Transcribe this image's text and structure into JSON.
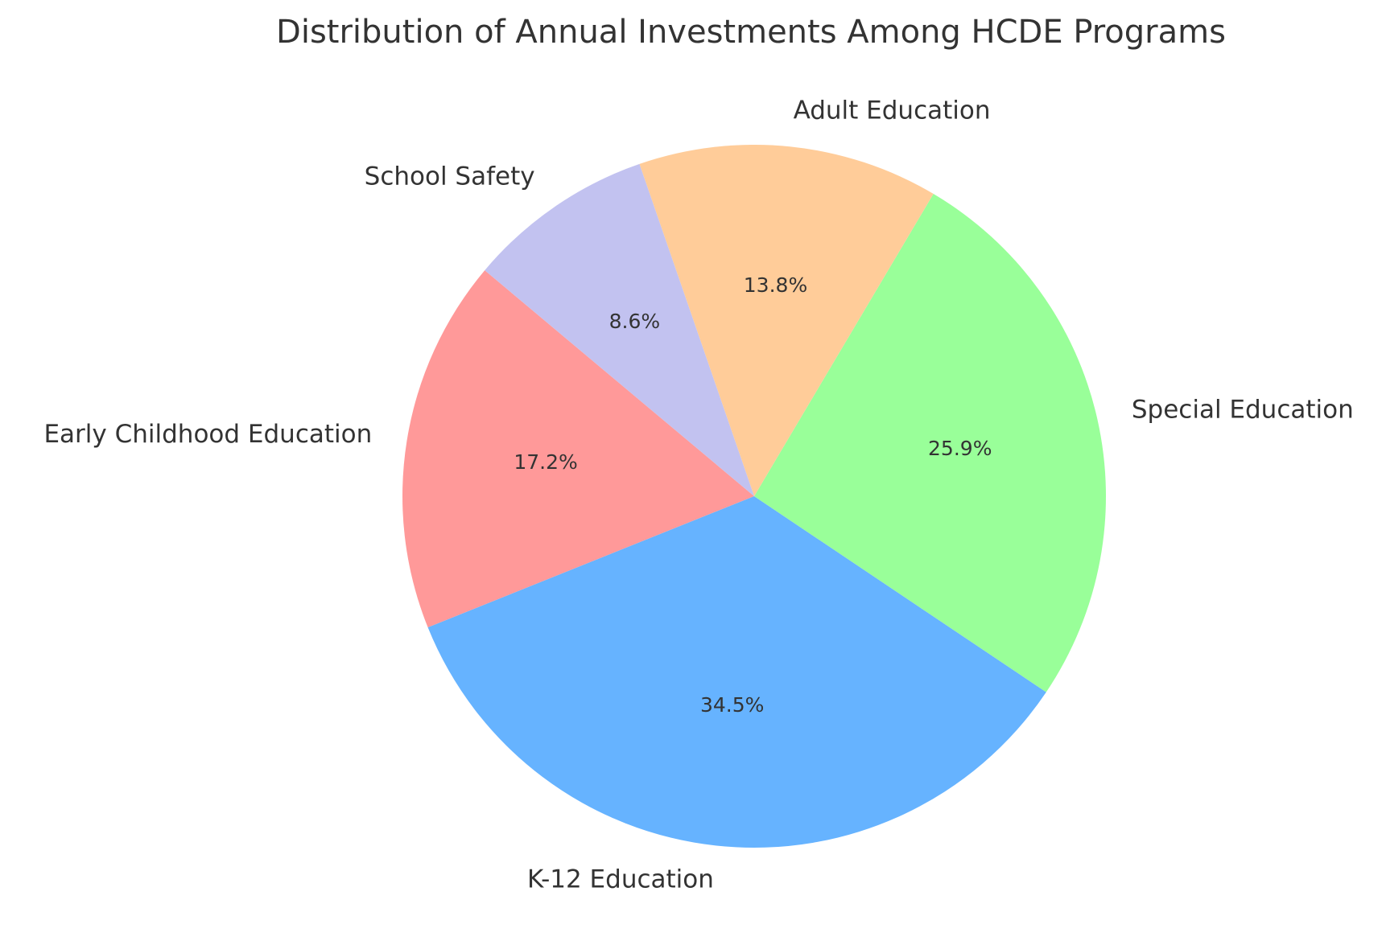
{
  "chart_data": {
    "type": "pie",
    "title": "Distribution of Annual Investments Among HCDE Programs",
    "categories": [
      "Early Childhood Education",
      "K-12 Education",
      "Special Education",
      "Adult Education",
      "School Safety"
    ],
    "values": [
      17.2,
      34.5,
      25.9,
      13.8,
      8.6
    ],
    "percent_labels": [
      "17.2%",
      "34.5%",
      "25.9%",
      "13.8%",
      "8.6%"
    ],
    "colors": [
      "#ff9999",
      "#66b3ff",
      "#99ff99",
      "#ffcc99",
      "#c2c2f0"
    ],
    "start_angle_deg": 140,
    "direction": "counterclockwise"
  }
}
